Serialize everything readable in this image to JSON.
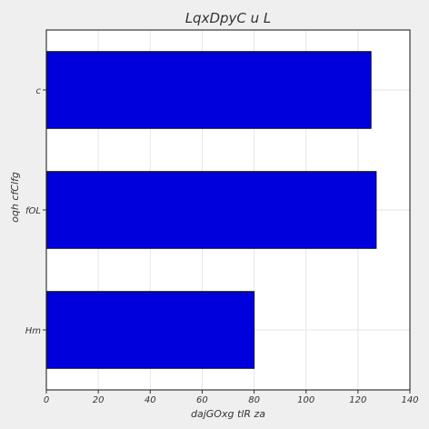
{
  "chart_data": {
    "type": "bar",
    "orientation": "horizontal",
    "title": "LqxDpyC u L",
    "xlabel": "dajGOxg tlR za",
    "ylabel": "oqh  cfClfg",
    "categories": [
      "Hm",
      "fOL",
      "c"
    ],
    "values": [
      80,
      127,
      125
    ],
    "xlim": [
      0,
      140
    ],
    "xticks": [
      0,
      20,
      40,
      60,
      80,
      100,
      120,
      140
    ],
    "grid": true,
    "bar_color": "#0000dd",
    "bar_edge_color": "#000000",
    "plot_background": "#ffffff",
    "figure_background": "#efefef"
  }
}
